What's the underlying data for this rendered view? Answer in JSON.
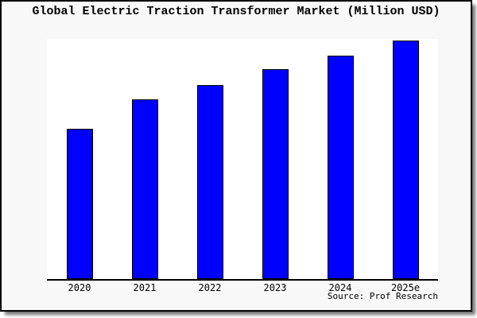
{
  "chart": {
    "background_color": "#f8f8f8",
    "plot_background_color": "#ffffff",
    "frame_border_color": "#000000"
  },
  "chart_data": {
    "type": "bar",
    "title": "Global Electric Traction Transformer Market (Million USD)",
    "categories": [
      "2020",
      "2021",
      "2022",
      "2023",
      "2024",
      "2025e"
    ],
    "values": [
      63,
      75.3,
      81.5,
      88,
      93.8,
      100
    ],
    "values_note": "No y-axis or data labels are shown in the chart; values are relative bar heights as percent of the tallest (2025e) bar",
    "xlabel": "",
    "ylabel": "",
    "ylim": [
      0,
      100
    ],
    "grid": false,
    "legend": false,
    "bar_color": "#0000ff",
    "bar_border_color": "#000000",
    "source": "Source: Prof Research"
  }
}
